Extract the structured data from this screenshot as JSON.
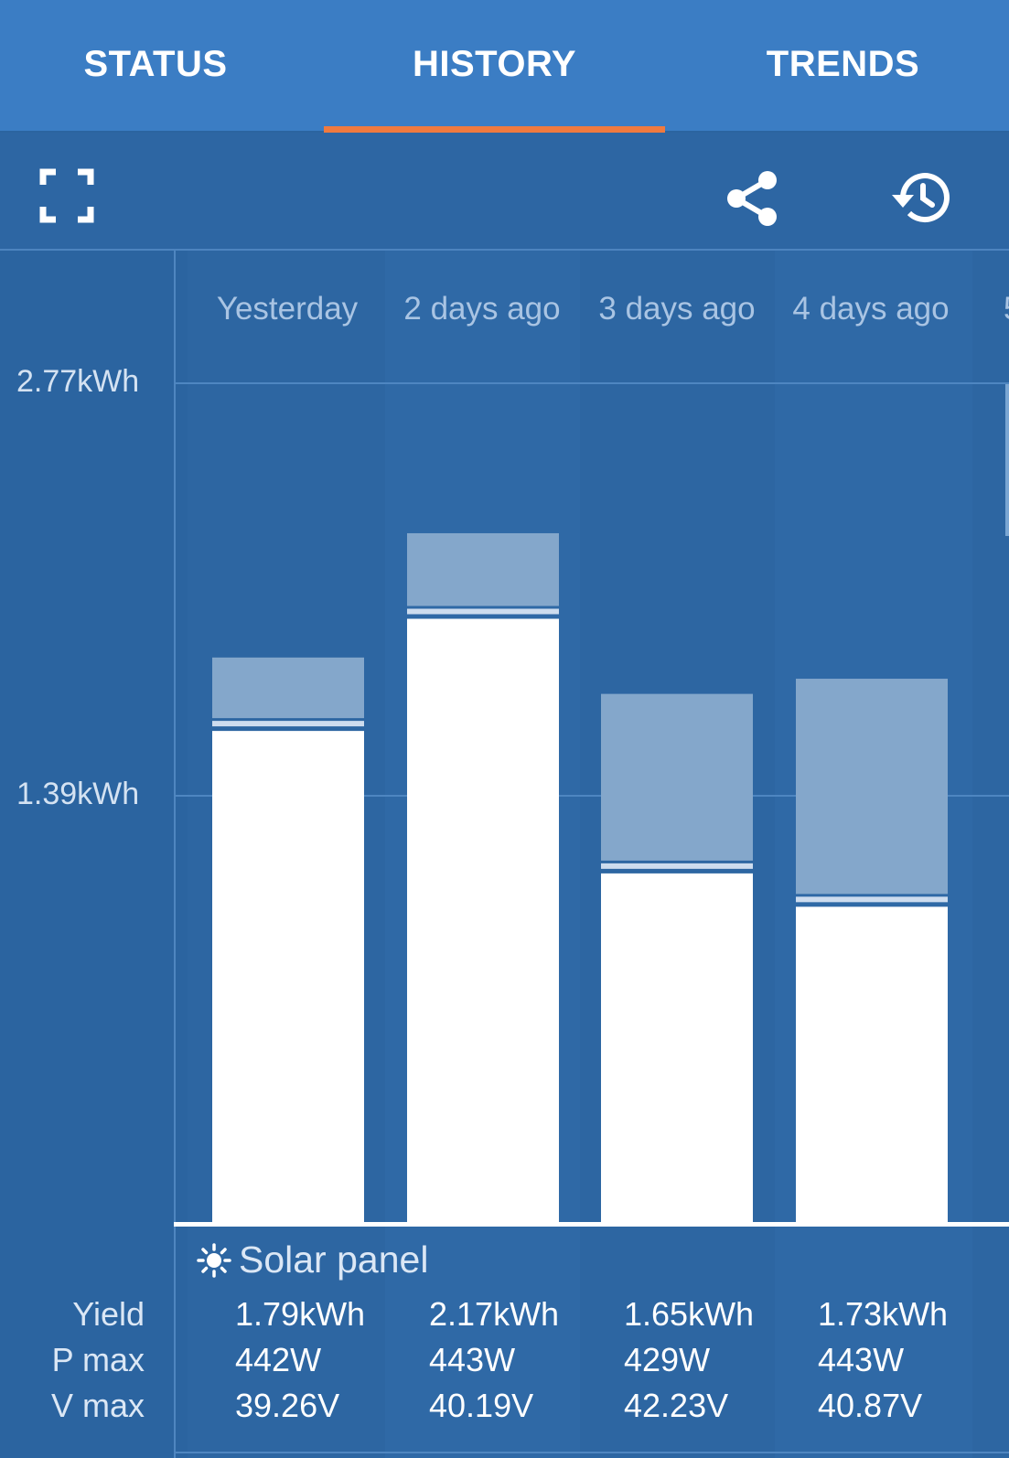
{
  "tabs": [
    {
      "label": "STATUS",
      "active": false
    },
    {
      "label": "HISTORY",
      "active": true
    },
    {
      "label": "TRENDS",
      "active": false
    }
  ],
  "toolbar": {
    "icons": [
      "fullscreen-icon",
      "share-icon",
      "history-icon"
    ]
  },
  "colors": {
    "tabbar": "#3b7dc4",
    "indicator": "#f07a3f",
    "background": "#2b64a0",
    "bar_fill": "#ffffff",
    "bar_upper": "#84a7cb"
  },
  "chart_data": {
    "type": "bar",
    "categories": [
      "Yesterday",
      "2 days ago",
      "3 days ago",
      "4 days ago"
    ],
    "y_ticks": [
      "2.77kWh",
      "1.39kWh"
    ],
    "ylim": [
      0,
      2.77
    ],
    "series": [
      {
        "values": [
          1.62,
          1.99,
          1.15,
          1.04
        ]
      },
      {
        "values": [
          0.2,
          0.24,
          0.55,
          0.71
        ]
      }
    ],
    "grid": true
  },
  "section": {
    "icon": "sun-icon",
    "title": "Solar panel"
  },
  "rows": [
    {
      "label": "Yield",
      "values": [
        "1.79kWh",
        "2.17kWh",
        "1.65kWh",
        "1.73kWh"
      ]
    },
    {
      "label": "P max",
      "values": [
        "442W",
        "443W",
        "429W",
        "443W"
      ]
    },
    {
      "label": "V max",
      "values": [
        "39.26V",
        "40.19V",
        "42.23V",
        "40.87V"
      ]
    }
  ]
}
